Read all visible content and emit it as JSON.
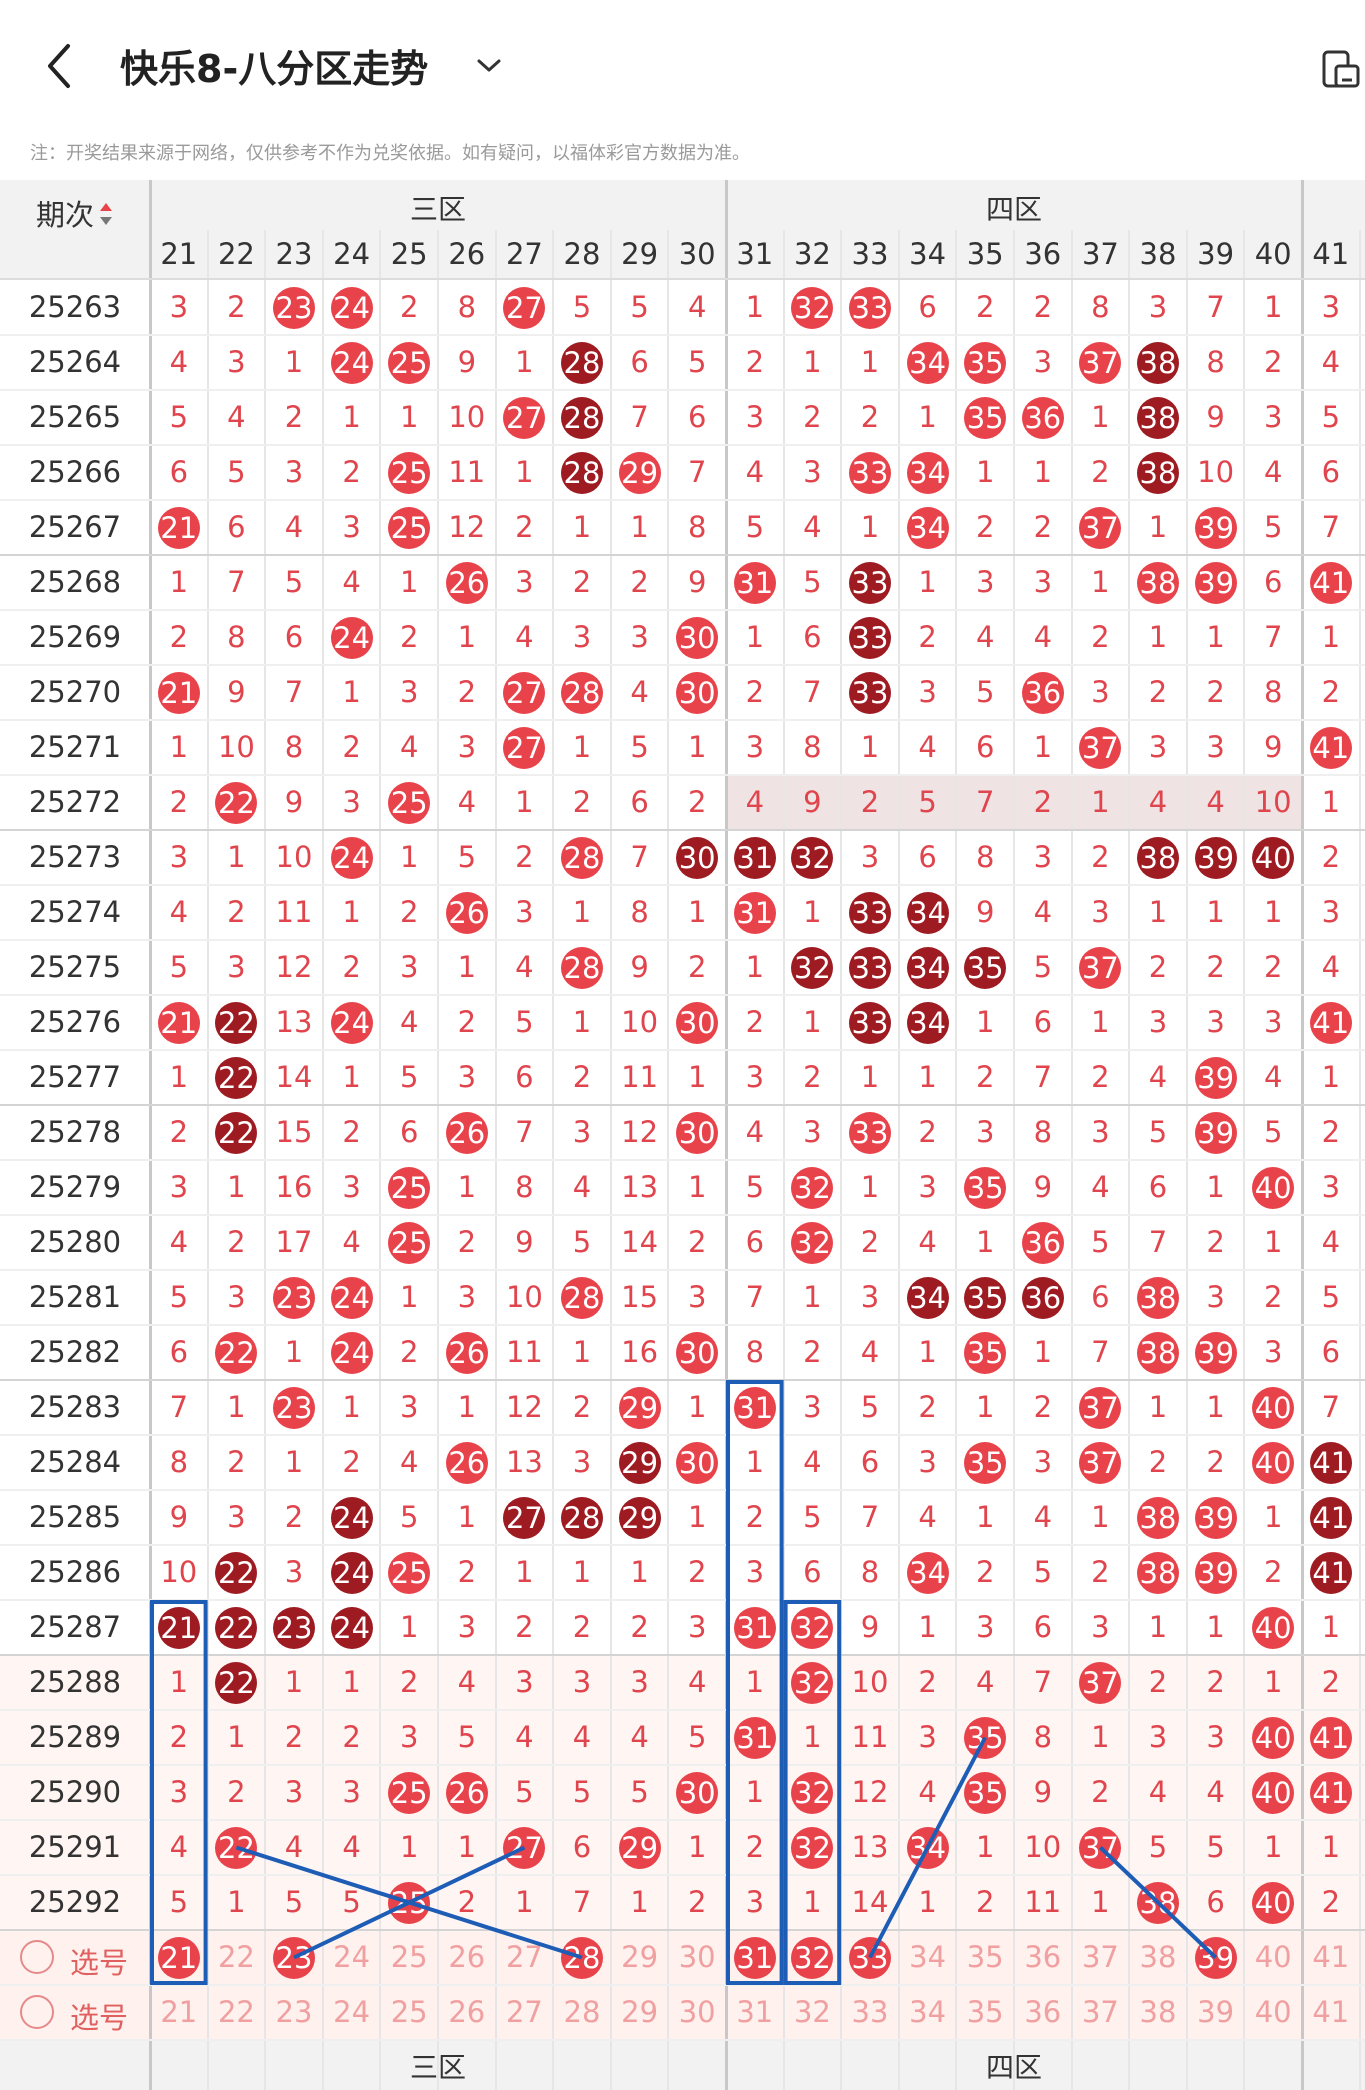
{
  "header": {
    "title": "快乐8-八分区走势",
    "back_icon": "chevron-left-icon",
    "dropdown_icon": "chevron-down-icon",
    "right_icon": "device-icon"
  },
  "notice": "注：开奖结果来源于网络，仅供参考不作为兑奖依据。如有疑问，以福体彩官方数据为准。",
  "table": {
    "period_header": "期次",
    "sort_icon": "sort-updown-icon",
    "zone3_label": "三区",
    "zone4_label": "四区",
    "columns": [
      "21",
      "22",
      "23",
      "24",
      "25",
      "26",
      "27",
      "28",
      "29",
      "30",
      "31",
      "32",
      "33",
      "34",
      "35",
      "36",
      "37",
      "38",
      "39",
      "40",
      "41"
    ],
    "rows": [
      {
        "period": "25263",
        "v": [
          "3",
          "2",
          "23",
          "24",
          "2",
          "8",
          "27",
          "5",
          "5",
          "4",
          "1",
          "32",
          "33",
          "6",
          "2",
          "2",
          "8",
          "3",
          "7",
          "1",
          "3"
        ]
      },
      {
        "period": "25264",
        "v": [
          "4",
          "3",
          "1",
          "24",
          "25",
          "9",
          "1",
          "28",
          "6",
          "5",
          "2",
          "1",
          "1",
          "34",
          "35",
          "3",
          "37",
          "38",
          "8",
          "2",
          "4"
        ]
      },
      {
        "period": "25265",
        "v": [
          "5",
          "4",
          "2",
          "1",
          "1",
          "10",
          "27",
          "28",
          "7",
          "6",
          "3",
          "2",
          "2",
          "1",
          "35",
          "36",
          "1",
          "38",
          "9",
          "3",
          "5"
        ]
      },
      {
        "period": "25266",
        "v": [
          "6",
          "5",
          "3",
          "2",
          "25",
          "11",
          "1",
          "28",
          "29",
          "7",
          "4",
          "3",
          "33",
          "34",
          "1",
          "1",
          "2",
          "38",
          "10",
          "4",
          "6"
        ]
      },
      {
        "period": "25267",
        "v": [
          "21",
          "6",
          "4",
          "3",
          "25",
          "12",
          "2",
          "1",
          "1",
          "8",
          "5",
          "4",
          "1",
          "34",
          "2",
          "2",
          "37",
          "1",
          "39",
          "5",
          "7"
        ]
      },
      {
        "period": "25268",
        "v": [
          "1",
          "7",
          "5",
          "4",
          "1",
          "26",
          "3",
          "2",
          "2",
          "9",
          "31",
          "5",
          "33",
          "1",
          "3",
          "3",
          "1",
          "38",
          "39",
          "6",
          "41"
        ]
      },
      {
        "period": "25269",
        "v": [
          "2",
          "8",
          "6",
          "24",
          "2",
          "1",
          "4",
          "3",
          "3",
          "30",
          "1",
          "6",
          "33",
          "2",
          "4",
          "4",
          "2",
          "1",
          "1",
          "7",
          "1"
        ]
      },
      {
        "period": "25270",
        "v": [
          "21",
          "9",
          "7",
          "1",
          "3",
          "2",
          "27",
          "28",
          "4",
          "30",
          "2",
          "7",
          "33",
          "3",
          "5",
          "36",
          "3",
          "2",
          "2",
          "8",
          "2"
        ]
      },
      {
        "period": "25271",
        "v": [
          "1",
          "10",
          "8",
          "2",
          "4",
          "3",
          "27",
          "1",
          "5",
          "1",
          "3",
          "8",
          "1",
          "4",
          "6",
          "1",
          "37",
          "3",
          "3",
          "9",
          "41"
        ]
      },
      {
        "period": "25272",
        "v": [
          "2",
          "22",
          "9",
          "3",
          "25",
          "4",
          "1",
          "2",
          "6",
          "2",
          "4",
          "9",
          "2",
          "5",
          "7",
          "2",
          "1",
          "4",
          "4",
          "10",
          "1"
        ]
      },
      {
        "period": "25273",
        "v": [
          "3",
          "1",
          "10",
          "24",
          "1",
          "5",
          "2",
          "28",
          "7",
          "30",
          "31",
          "32",
          "3",
          "6",
          "8",
          "3",
          "2",
          "38",
          "39",
          "40",
          "2"
        ]
      },
      {
        "period": "25274",
        "v": [
          "4",
          "2",
          "11",
          "1",
          "2",
          "26",
          "3",
          "1",
          "8",
          "1",
          "31",
          "1",
          "33",
          "34",
          "9",
          "4",
          "3",
          "1",
          "1",
          "1",
          "3"
        ]
      },
      {
        "period": "25275",
        "v": [
          "5",
          "3",
          "12",
          "2",
          "3",
          "1",
          "4",
          "28",
          "9",
          "2",
          "1",
          "32",
          "33",
          "34",
          "35",
          "5",
          "37",
          "2",
          "2",
          "2",
          "4"
        ]
      },
      {
        "period": "25276",
        "v": [
          "21",
          "22",
          "13",
          "24",
          "4",
          "2",
          "5",
          "1",
          "10",
          "30",
          "2",
          "1",
          "33",
          "34",
          "1",
          "6",
          "1",
          "3",
          "3",
          "3",
          "41"
        ]
      },
      {
        "period": "25277",
        "v": [
          "1",
          "22",
          "14",
          "1",
          "5",
          "3",
          "6",
          "2",
          "11",
          "1",
          "3",
          "2",
          "1",
          "1",
          "2",
          "7",
          "2",
          "4",
          "39",
          "4",
          "1"
        ]
      },
      {
        "period": "25278",
        "v": [
          "2",
          "22",
          "15",
          "2",
          "6",
          "26",
          "7",
          "3",
          "12",
          "30",
          "4",
          "3",
          "33",
          "2",
          "3",
          "8",
          "3",
          "5",
          "39",
          "5",
          "2"
        ]
      },
      {
        "period": "25279",
        "v": [
          "3",
          "1",
          "16",
          "3",
          "25",
          "1",
          "8",
          "4",
          "13",
          "1",
          "5",
          "32",
          "1",
          "3",
          "35",
          "9",
          "4",
          "6",
          "1",
          "40",
          "3"
        ]
      },
      {
        "period": "25280",
        "v": [
          "4",
          "2",
          "17",
          "4",
          "25",
          "2",
          "9",
          "5",
          "14",
          "2",
          "6",
          "32",
          "2",
          "4",
          "1",
          "36",
          "5",
          "7",
          "2",
          "1",
          "4"
        ]
      },
      {
        "period": "25281",
        "v": [
          "5",
          "3",
          "23",
          "24",
          "1",
          "3",
          "10",
          "28",
          "15",
          "3",
          "7",
          "1",
          "3",
          "34",
          "35",
          "36",
          "6",
          "38",
          "3",
          "2",
          "5"
        ]
      },
      {
        "period": "25282",
        "v": [
          "6",
          "22",
          "1",
          "24",
          "2",
          "26",
          "11",
          "1",
          "16",
          "30",
          "8",
          "2",
          "4",
          "1",
          "35",
          "1",
          "7",
          "38",
          "39",
          "3",
          "6"
        ]
      },
      {
        "period": "25283",
        "v": [
          "7",
          "1",
          "23",
          "1",
          "3",
          "1",
          "12",
          "2",
          "29",
          "1",
          "31",
          "3",
          "5",
          "2",
          "1",
          "2",
          "37",
          "1",
          "1",
          "40",
          "7"
        ]
      },
      {
        "period": "25284",
        "v": [
          "8",
          "2",
          "1",
          "2",
          "4",
          "26",
          "13",
          "3",
          "29",
          "30",
          "1",
          "4",
          "6",
          "3",
          "35",
          "3",
          "37",
          "2",
          "2",
          "40",
          "41"
        ]
      },
      {
        "period": "25285",
        "v": [
          "9",
          "3",
          "2",
          "24",
          "5",
          "1",
          "27",
          "28",
          "29",
          "1",
          "2",
          "5",
          "7",
          "4",
          "1",
          "4",
          "1",
          "38",
          "39",
          "1",
          "41"
        ]
      },
      {
        "period": "25286",
        "v": [
          "10",
          "22",
          "3",
          "24",
          "25",
          "2",
          "1",
          "1",
          "1",
          "2",
          "3",
          "6",
          "8",
          "34",
          "2",
          "5",
          "2",
          "38",
          "39",
          "2",
          "41"
        ]
      },
      {
        "period": "25287",
        "v": [
          "21",
          "22",
          "23",
          "24",
          "1",
          "3",
          "2",
          "2",
          "2",
          "3",
          "31",
          "32",
          "9",
          "1",
          "3",
          "6",
          "3",
          "1",
          "1",
          "40",
          "1"
        ]
      },
      {
        "period": "25288",
        "v": [
          "1",
          "22",
          "1",
          "1",
          "2",
          "4",
          "3",
          "3",
          "3",
          "4",
          "1",
          "32",
          "10",
          "2",
          "4",
          "7",
          "37",
          "2",
          "2",
          "1",
          "2"
        ]
      },
      {
        "period": "25289",
        "v": [
          "2",
          "1",
          "2",
          "2",
          "3",
          "5",
          "4",
          "4",
          "4",
          "5",
          "31",
          "1",
          "11",
          "3",
          "35",
          "8",
          "1",
          "3",
          "3",
          "40",
          "41"
        ]
      },
      {
        "period": "25290",
        "v": [
          "3",
          "2",
          "3",
          "3",
          "25",
          "26",
          "5",
          "5",
          "5",
          "30",
          "1",
          "32",
          "12",
          "4",
          "35",
          "9",
          "2",
          "4",
          "4",
          "40",
          "41"
        ]
      },
      {
        "period": "25291",
        "v": [
          "4",
          "22",
          "4",
          "4",
          "1",
          "1",
          "27",
          "6",
          "29",
          "1",
          "2",
          "32",
          "13",
          "34",
          "1",
          "10",
          "37",
          "5",
          "5",
          "1",
          "1"
        ]
      },
      {
        "period": "25292",
        "v": [
          "5",
          "1",
          "5",
          "5",
          "25",
          "2",
          "1",
          "7",
          "1",
          "2",
          "3",
          "1",
          "14",
          "1",
          "2",
          "11",
          "1",
          "38",
          "6",
          "40",
          "2"
        ]
      }
    ],
    "select_rows": [
      {
        "label": "选号",
        "selected": [
          "21",
          "23",
          "28",
          "31",
          "32",
          "33",
          "39"
        ]
      },
      {
        "label": "选号",
        "selected": []
      }
    ],
    "colors": {
      "hit_red": "#e8424a",
      "hit_dark": "#9e1b22",
      "miss_text": "#e0454d",
      "highlight_row": "#efe3e3",
      "select_bg": "#fff1ee",
      "box_blue": "#1e5db5"
    }
  }
}
